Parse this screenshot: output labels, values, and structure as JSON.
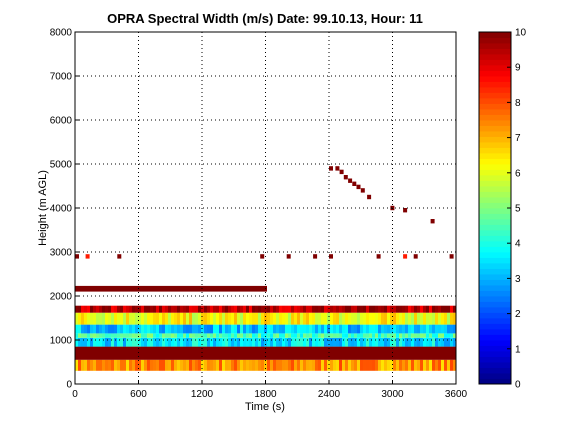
{
  "chart_data": {
    "type": "heatmap",
    "title": "OPRA Spectral Width (m/s)  Date: 99.10.13, Hour: 11",
    "xlabel": "Time (s)",
    "ylabel": "Height (m AGL)",
    "xlim": [
      0,
      3600
    ],
    "ylim": [
      0,
      8000
    ],
    "x_ticks": [
      "0",
      "600",
      "1200",
      "1800",
      "2400",
      "3000",
      "3600"
    ],
    "y_ticks": [
      "0",
      "1000",
      "2000",
      "3000",
      "4000",
      "5000",
      "6000",
      "7000",
      "8000"
    ],
    "grid": true,
    "colorbar": {
      "range": [
        0,
        10
      ],
      "ticks": [
        "0",
        "1",
        "2",
        "3",
        "4",
        "5",
        "6",
        "7",
        "8",
        "9",
        "10"
      ],
      "colormap": "jet"
    },
    "bands": [
      {
        "y": [
          300,
          550
        ],
        "x": [
          0,
          3600
        ],
        "value": 7.3
      },
      {
        "y": [
          550,
          850
        ],
        "x": [
          0,
          3600
        ],
        "value": 10
      },
      {
        "y": [
          850,
          1050
        ],
        "x": [
          0,
          3600
        ],
        "value": 3.5
      },
      {
        "y": [
          1050,
          1150
        ],
        "x": [
          0,
          3600
        ],
        "value": 4.4
      },
      {
        "y": [
          1150,
          1350
        ],
        "x": [
          0,
          3600
        ],
        "value": 3.2
      },
      {
        "y": [
          1350,
          1620
        ],
        "x": [
          0,
          3600
        ],
        "value": 6.2
      },
      {
        "y": [
          1620,
          1780
        ],
        "x": [
          0,
          3600
        ],
        "value": 9.5
      },
      {
        "y": [
          2100,
          2230
        ],
        "x": [
          0,
          1800
        ],
        "value": 10
      }
    ],
    "scatter_cells": [
      {
        "t": 2400,
        "h": 4900,
        "v": 10
      },
      {
        "t": 2460,
        "h": 4900,
        "v": 10
      },
      {
        "t": 2500,
        "h": 4820,
        "v": 10
      },
      {
        "t": 2540,
        "h": 4700,
        "v": 10
      },
      {
        "t": 2580,
        "h": 4620,
        "v": 10
      },
      {
        "t": 2620,
        "h": 4550,
        "v": 10
      },
      {
        "t": 2660,
        "h": 4480,
        "v": 10
      },
      {
        "t": 2700,
        "h": 4400,
        "v": 10
      },
      {
        "t": 2760,
        "h": 4250,
        "v": 10
      },
      {
        "t": 2980,
        "h": 4000,
        "v": 10
      },
      {
        "t": 3100,
        "h": 3950,
        "v": 10
      },
      {
        "t": 3360,
        "h": 3700,
        "v": 10
      },
      {
        "t": 0,
        "h": 2900,
        "v": 10
      },
      {
        "t": 100,
        "h": 2900,
        "v": 8.5
      },
      {
        "t": 400,
        "h": 2900,
        "v": 10
      },
      {
        "t": 1750,
        "h": 2900,
        "v": 10
      },
      {
        "t": 2000,
        "h": 2900,
        "v": 10
      },
      {
        "t": 2250,
        "h": 2900,
        "v": 10
      },
      {
        "t": 2400,
        "h": 2900,
        "v": 10
      },
      {
        "t": 2850,
        "h": 2900,
        "v": 10
      },
      {
        "t": 3100,
        "h": 2900,
        "v": 8.5
      },
      {
        "t": 3200,
        "h": 2900,
        "v": 10
      },
      {
        "t": 3540,
        "h": 2900,
        "v": 10
      }
    ]
  }
}
